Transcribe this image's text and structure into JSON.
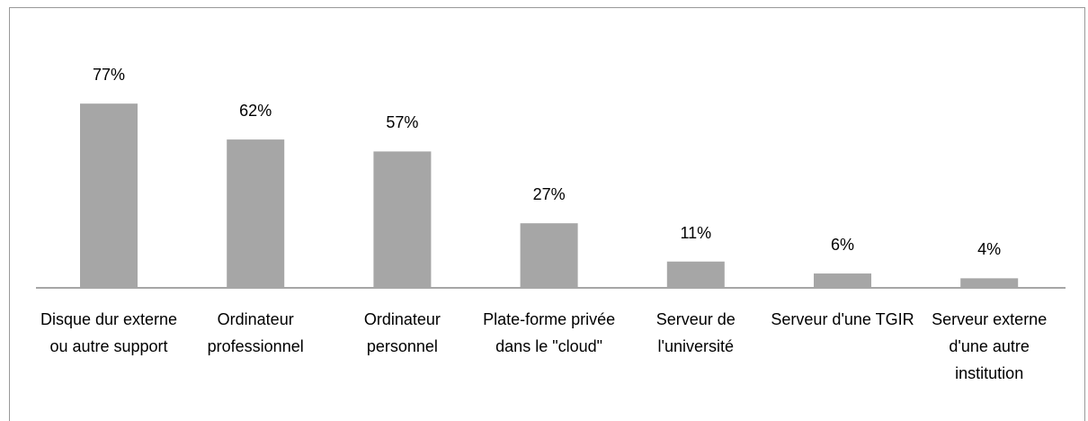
{
  "chart_data": {
    "type": "bar",
    "categories": [
      "Disque dur externe ou autre support",
      "Ordinateur professionnel",
      "Ordinateur personnel",
      "Plate-forme privée dans le \"cloud\"",
      "Serveur de l'université",
      "Serveur d'une TGIR",
      "Serveur externe d'une autre institution"
    ],
    "values": [
      77,
      62,
      57,
      27,
      11,
      6,
      4
    ],
    "value_labels": [
      "77%",
      "62%",
      "57%",
      "27%",
      "11%",
      "6%",
      "4%"
    ],
    "color": "#a6a6a6"
  }
}
